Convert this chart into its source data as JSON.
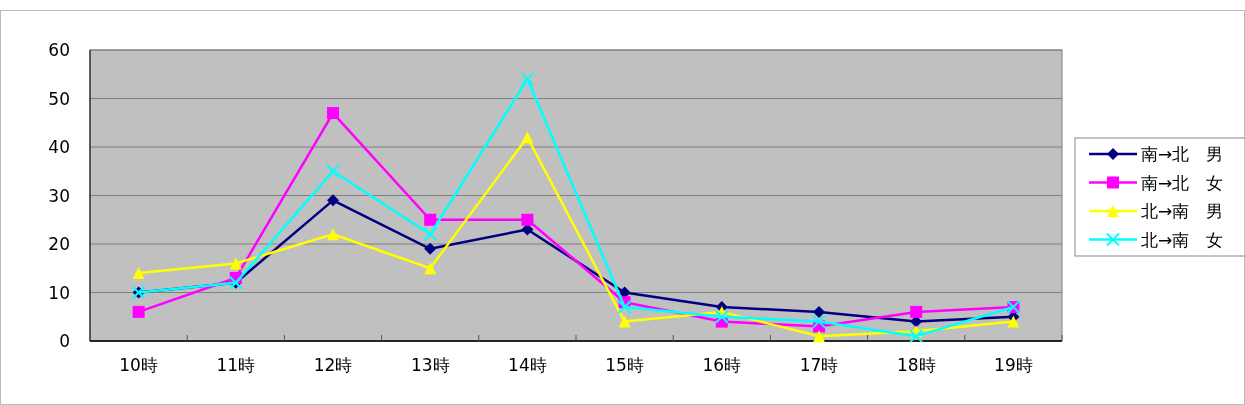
{
  "chart_data": {
    "type": "line",
    "categories": [
      "10時",
      "11時",
      "12時",
      "13時",
      "14時",
      "15時",
      "16時",
      "17時",
      "18時",
      "19時"
    ],
    "series": [
      {
        "name": "南→北　男",
        "color": "#000080",
        "marker": "diamond",
        "values": [
          10,
          12,
          29,
          19,
          23,
          10,
          7,
          6,
          4,
          5
        ]
      },
      {
        "name": "南→北　女",
        "color": "#ff00ff",
        "marker": "square",
        "values": [
          6,
          13,
          47,
          25,
          25,
          8,
          4,
          3,
          6,
          7
        ]
      },
      {
        "name": "北→南　男",
        "color": "#ffff00",
        "marker": "triangle",
        "values": [
          14,
          16,
          22,
          15,
          42,
          4,
          6,
          1,
          2,
          4
        ]
      },
      {
        "name": "北→南　女",
        "color": "#00ffff",
        "marker": "cross",
        "values": [
          10,
          12,
          35,
          22,
          54,
          7,
          5,
          4,
          1,
          7
        ]
      }
    ],
    "ylim": [
      0,
      60
    ],
    "yticks": [
      0,
      10,
      20,
      30,
      40,
      50,
      60
    ],
    "grid": "y",
    "legend": "right"
  }
}
